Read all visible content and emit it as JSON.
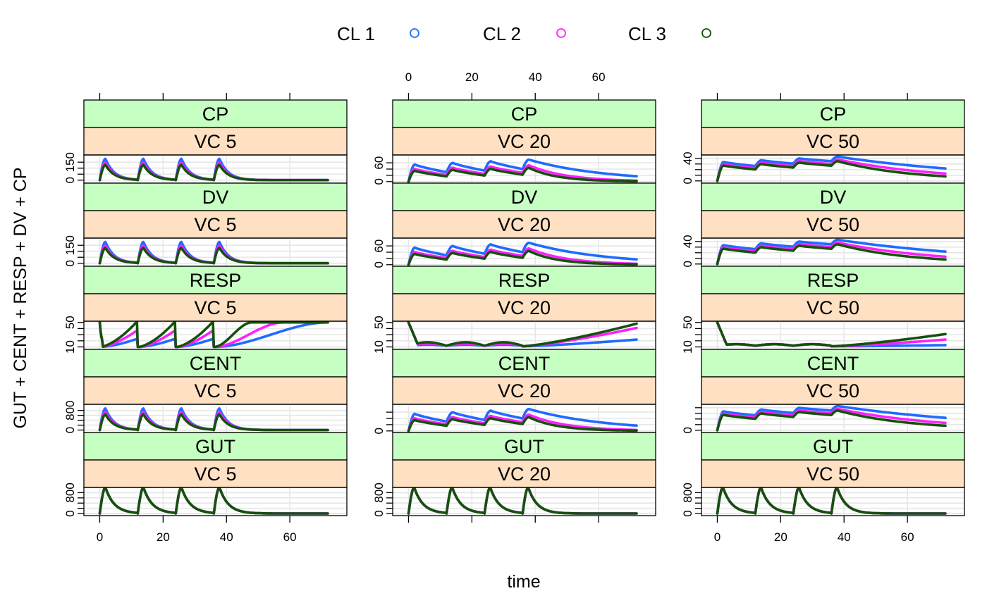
{
  "colors": {
    "strip_outer": "#c6ffc2",
    "strip_inner": "#ffe0c2",
    "grid": "#e6e6e6"
  },
  "legend": {
    "items": [
      {
        "label": "CL 1",
        "color": "#1f6bff"
      },
      {
        "label": "CL 2",
        "color": "#ff1fff"
      },
      {
        "label": "CL 3",
        "color": "#14520a"
      }
    ]
  },
  "chart_data": {
    "type": "line",
    "layout": "lattice",
    "xlabel": "time",
    "ylabel": "GUT + CENT + RESP + DV + CP",
    "xlim": [
      -5,
      78
    ],
    "x_ticks": [
      0,
      20,
      40,
      60
    ],
    "doses_at": [
      0,
      12,
      24,
      36
    ],
    "series": [
      {
        "name": "CL 1",
        "color": "#1f6bff"
      },
      {
        "name": "CL 2",
        "color": "#ff1fff"
      },
      {
        "name": "CL 3",
        "color": "#14520a"
      }
    ],
    "columns": [
      {
        "label": "VC 5",
        "left_axis_ticks": true,
        "bottom_axis_ticks": true
      },
      {
        "label": "VC 20",
        "left_axis_ticks": true,
        "top_axis_ticks": true
      },
      {
        "label": "VC 50",
        "left_axis_ticks": true,
        "bottom_axis_ticks": true
      }
    ],
    "rows": [
      {
        "label": "CP",
        "panels": [
          {
            "ylim": [
              -25,
              210
            ],
            "ticks": [
              0,
              50,
              100,
              150
            ],
            "labels": [
              {
                "v": 0,
                "t": "0"
              },
              {
                "v": 150,
                "t": "150"
              }
            ],
            "curves": [
              {
                "peak": 178,
                "trough": 0
              },
              {
                "peak": 148,
                "trough": 0
              },
              {
                "peak": 128,
                "trough": 0
              }
            ]
          },
          {
            "ylim": [
              -5,
              85
            ],
            "ticks": [
              0,
              20,
              40,
              60
            ],
            "labels": [
              {
                "v": 0,
                "t": "0"
              },
              {
                "v": 60,
                "t": "60"
              }
            ],
            "curves": [
              {
                "peak": 70,
                "trough": 40,
                "end": 17
              },
              {
                "peak": 52,
                "trough": 28,
                "end": 3
              },
              {
                "peak": 44,
                "trough": 22,
                "end": 1
              }
            ]
          },
          {
            "ylim": [
              -4,
              46
            ],
            "ticks": [
              0,
              10,
              20,
              30,
              40
            ],
            "labels": [
              {
                "v": 0,
                "t": "0"
              },
              {
                "v": 40,
                "t": "40"
              }
            ],
            "curves": [
              {
                "peak": 43,
                "trough": 35,
                "end": 22
              },
              {
                "peak": 38,
                "trough": 30,
                "end": 13
              },
              {
                "peak": 35,
                "trough": 27,
                "end": 8
              }
            ]
          }
        ]
      },
      {
        "label": "DV",
        "panels": [
          {
            "ylim": [
              -25,
              210
            ],
            "ticks": [
              0,
              50,
              100,
              150
            ],
            "labels": [
              {
                "v": 0,
                "t": "0"
              },
              {
                "v": 150,
                "t": "150"
              }
            ],
            "curves": [
              {
                "peak": 178,
                "trough": 0
              },
              {
                "peak": 148,
                "trough": 0
              },
              {
                "peak": 128,
                "trough": 0
              }
            ]
          },
          {
            "ylim": [
              -5,
              85
            ],
            "ticks": [
              0,
              20,
              40,
              60
            ],
            "labels": [
              {
                "v": 0,
                "t": "0"
              },
              {
                "v": 60,
                "t": "60"
              }
            ],
            "curves": [
              {
                "peak": 70,
                "trough": 40,
                "end": 17
              },
              {
                "peak": 52,
                "trough": 28,
                "end": 3
              },
              {
                "peak": 44,
                "trough": 22,
                "end": 1
              }
            ]
          },
          {
            "ylim": [
              -4,
              46
            ],
            "ticks": [
              0,
              10,
              20,
              30,
              40
            ],
            "labels": [
              {
                "v": 0,
                "t": "0"
              },
              {
                "v": 40,
                "t": "40"
              }
            ],
            "curves": [
              {
                "peak": 43,
                "trough": 35,
                "end": 22
              },
              {
                "peak": 38,
                "trough": 30,
                "end": 13
              },
              {
                "peak": 35,
                "trough": 27,
                "end": 8
              }
            ]
          }
        ]
      },
      {
        "label": "RESP",
        "panels": [
          {
            "ylim": [
              6,
              52
            ],
            "ticks": [
              10,
              20,
              30,
              40,
              50
            ],
            "labels": [
              {
                "v": 10,
                "t": "10"
              },
              {
                "v": 50,
                "t": "50"
              }
            ],
            "curves": [
              {
                "min": 10,
                "max": 50
              },
              {
                "min": 10,
                "max": 50
              },
              {
                "min": 10,
                "max": 50
              }
            ]
          },
          {
            "ylim": [
              6,
              52
            ],
            "ticks": [
              10,
              20,
              30,
              40,
              50
            ],
            "labels": [
              {
                "v": 10,
                "t": "10"
              },
              {
                "v": 50,
                "t": "50"
              }
            ],
            "curves": [
              {
                "min": 10,
                "max": 50,
                "end": 22
              },
              {
                "min": 10,
                "max": 50,
                "end": 41
              },
              {
                "min": 10,
                "max": 50,
                "end": 48
              }
            ]
          },
          {
            "ylim": [
              6,
              52
            ],
            "ticks": [
              10,
              20,
              30,
              40,
              50
            ],
            "labels": [
              {
                "v": 10,
                "t": "10"
              },
              {
                "v": 50,
                "t": "50"
              }
            ],
            "curves": [
              {
                "min": 10,
                "max": 50,
                "end": 13
              },
              {
                "min": 10,
                "max": 50,
                "end": 22
              },
              {
                "min": 10,
                "max": 50,
                "end": 31
              }
            ]
          }
        ]
      },
      {
        "label": "CENT",
        "panels": [
          {
            "ylim": [
              -100,
              1050
            ],
            "ticks": [
              0,
              200,
              400,
              600,
              800
            ],
            "labels": [
              {
                "v": 0,
                "t": "0"
              },
              {
                "v": 800,
                "t": "800"
              }
            ],
            "curves": [
              {
                "peak": 880,
                "trough": 0
              },
              {
                "peak": 740,
                "trough": 0
              },
              {
                "peak": 640,
                "trough": 0
              }
            ]
          },
          {
            "ylim": [
              -100,
              1700
            ],
            "ticks": [
              0,
              400,
              800,
              1200
            ],
            "labels": [
              {
                "v": 0,
                "t": "0"
              }
            ],
            "curves": [
              {
                "peak": 1400,
                "trough": 800,
                "end": 340
              },
              {
                "peak": 1040,
                "trough": 560,
                "end": 60
              },
              {
                "peak": 880,
                "trough": 440,
                "end": 20
              }
            ]
          },
          {
            "ylim": [
              -200,
              2300
            ],
            "ticks": [
              0,
              500,
              1000,
              1500,
              2000
            ],
            "labels": [
              {
                "v": 0,
                "t": "0"
              }
            ],
            "curves": [
              {
                "peak": 2150,
                "trough": 1750,
                "end": 1100
              },
              {
                "peak": 1900,
                "trough": 1500,
                "end": 650
              },
              {
                "peak": 1750,
                "trough": 1350,
                "end": 400
              }
            ]
          }
        ]
      },
      {
        "label": "GUT",
        "panels": [
          {
            "ylim": [
              -80,
              1000
            ],
            "ticks": [
              0,
              200,
              400,
              600,
              800
            ],
            "labels": [
              {
                "v": 0,
                "t": "0"
              },
              {
                "v": 800,
                "t": "800"
              }
            ],
            "curves": [
              {
                "peak": 1000,
                "trough": 0
              },
              {
                "peak": 1000,
                "trough": 0
              },
              {
                "peak": 1000,
                "trough": 0
              }
            ]
          },
          {
            "ylim": [
              -80,
              1000
            ],
            "ticks": [
              0,
              200,
              400,
              600,
              800
            ],
            "labels": [
              {
                "v": 0,
                "t": "0"
              },
              {
                "v": 800,
                "t": "800"
              }
            ],
            "curves": [
              {
                "peak": 1000,
                "trough": 0
              },
              {
                "peak": 1000,
                "trough": 0
              },
              {
                "peak": 1000,
                "trough": 0
              }
            ]
          },
          {
            "ylim": [
              -80,
              1000
            ],
            "ticks": [
              0,
              200,
              400,
              600,
              800
            ],
            "labels": [
              {
                "v": 0,
                "t": "0"
              },
              {
                "v": 800,
                "t": "800"
              }
            ],
            "curves": [
              {
                "peak": 1000,
                "trough": 0
              },
              {
                "peak": 1000,
                "trough": 0
              },
              {
                "peak": 1000,
                "trough": 0
              }
            ]
          }
        ]
      }
    ]
  }
}
